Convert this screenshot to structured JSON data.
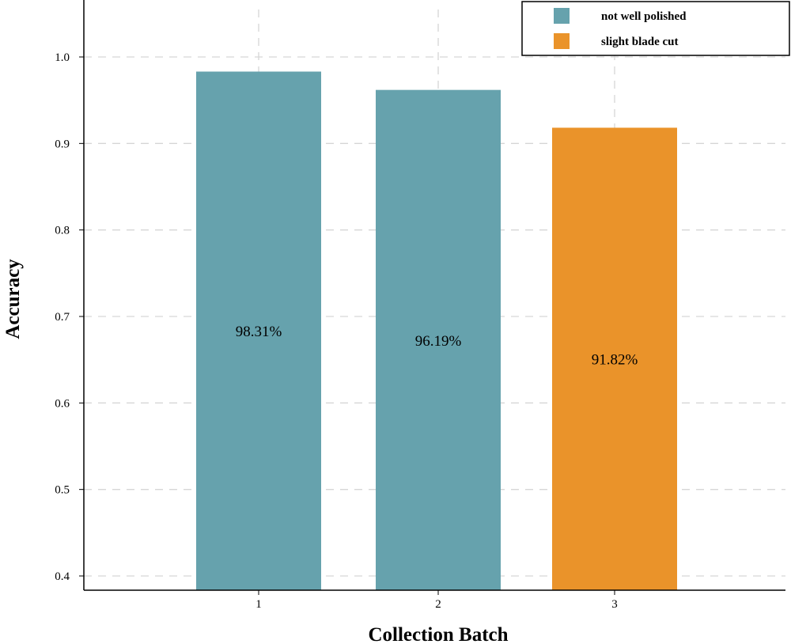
{
  "chart_data": {
    "type": "bar",
    "categories": [
      "1",
      "2",
      "3"
    ],
    "values": [
      0.9831,
      0.9619,
      0.9182
    ],
    "data_labels": [
      "98.31%",
      "96.19%",
      "91.82%"
    ],
    "bar_series": [
      "not well polished",
      "not well polished",
      "slight blade cut"
    ],
    "series": [
      {
        "name": "not well polished",
        "color": "#66a2ad"
      },
      {
        "name": "slight blade cut",
        "color": "#ea932a"
      }
    ],
    "xlabel": "Collection Batch",
    "ylabel": "Accuracy",
    "ylim": [
      0.4,
      1.0
    ],
    "yticks": [
      "0.4",
      "0.5",
      "0.6",
      "0.7",
      "0.8",
      "0.9",
      "1.0"
    ],
    "grid": true,
    "legend_position": "top-right"
  }
}
